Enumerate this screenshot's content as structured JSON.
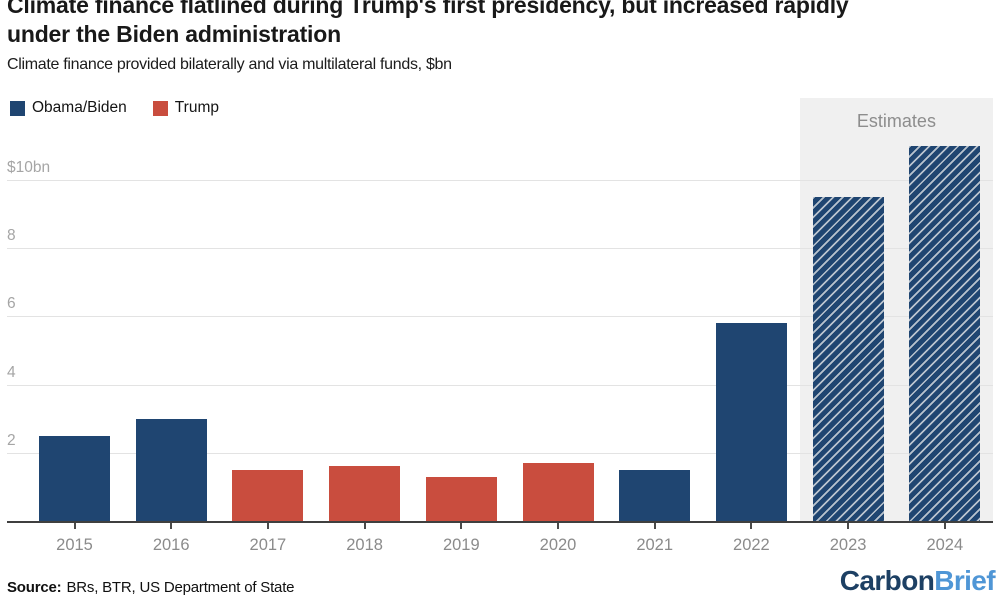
{
  "header": {
    "title_line1": "Climate finance flatlined during Trump's first presidency, but increased rapidly",
    "title_line2": "under the Biden administration",
    "subtitle": "Climate finance provided bilaterally and via multilateral funds, $bn"
  },
  "legend": {
    "items": [
      {
        "label": "Obama/Biden",
        "color": "#1f4571"
      },
      {
        "label": "Trump",
        "color": "#c94d3e"
      }
    ]
  },
  "chart_data": {
    "type": "bar",
    "title": "Climate finance flatlined during Trump's first presidency, but increased rapidly under the Biden administration",
    "subtitle": "Climate finance provided bilaterally and via multilateral funds, $bn",
    "unit": "$bn",
    "categories": [
      "2015",
      "2016",
      "2017",
      "2018",
      "2019",
      "2020",
      "2021",
      "2022",
      "2023",
      "2024"
    ],
    "bars": [
      {
        "year": "2015",
        "value": 2.5,
        "series": "Obama/Biden",
        "estimate": false
      },
      {
        "year": "2016",
        "value": 3.0,
        "series": "Obama/Biden",
        "estimate": false
      },
      {
        "year": "2017",
        "value": 1.5,
        "series": "Trump",
        "estimate": false
      },
      {
        "year": "2018",
        "value": 1.6,
        "series": "Trump",
        "estimate": false
      },
      {
        "year": "2019",
        "value": 1.3,
        "series": "Trump",
        "estimate": false
      },
      {
        "year": "2020",
        "value": 1.7,
        "series": "Trump",
        "estimate": false
      },
      {
        "year": "2021",
        "value": 1.5,
        "series": "Obama/Biden",
        "estimate": false
      },
      {
        "year": "2022",
        "value": 5.8,
        "series": "Obama/Biden",
        "estimate": false
      },
      {
        "year": "2023",
        "value": 9.5,
        "series": "Obama/Biden",
        "estimate": true
      },
      {
        "year": "2024",
        "value": 11.0,
        "series": "Obama/Biden",
        "estimate": true
      }
    ],
    "yticks": [
      {
        "value": 2,
        "label": "2"
      },
      {
        "value": 4,
        "label": "4"
      },
      {
        "value": 6,
        "label": "6"
      },
      {
        "value": 8,
        "label": "8"
      },
      {
        "value": 10,
        "label": "$10bn"
      }
    ],
    "ylim": [
      0,
      12.4
    ],
    "grid": true,
    "legend_position": "top-left",
    "annotations": [
      {
        "text": "Estimates",
        "covers": [
          "2023",
          "2024"
        ]
      }
    ],
    "colors": {
      "Obama/Biden": "#1f4571",
      "Trump": "#c94d3e",
      "hatch_line": "#b9c3ce",
      "estimate_band": "#f0f0f0"
    }
  },
  "footer": {
    "source_label": "Source:",
    "source_text": "BRs, BTR, US Department of State",
    "logo": {
      "part1": "Carbon",
      "part2": "Brief",
      "part1_color": "#1d4064",
      "part2_color": "#4f96d6"
    }
  }
}
